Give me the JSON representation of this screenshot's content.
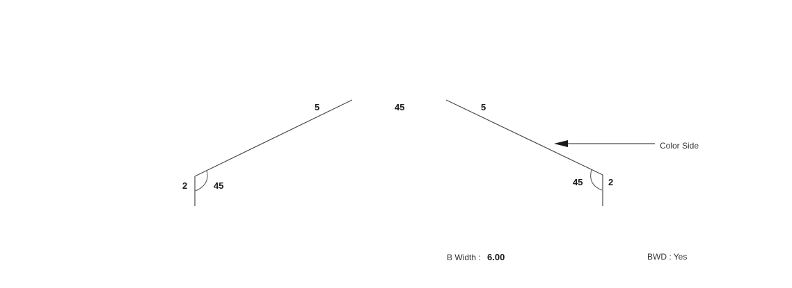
{
  "diagram": {
    "dimensions": {
      "left_slope_length": "5",
      "right_slope_length": "5",
      "peak_angle": "45",
      "left_hem_length": "2",
      "left_hem_angle": "45",
      "right_hem_length": "2",
      "right_hem_angle": "45"
    },
    "color_side_label": "Color Side",
    "footer": {
      "b_width_label": "B Width :",
      "b_width_value": "6.00",
      "bwd_text": "BWD : Yes"
    },
    "colors": {
      "line": "#4a4a4a",
      "text": "#1a1a1a"
    }
  }
}
